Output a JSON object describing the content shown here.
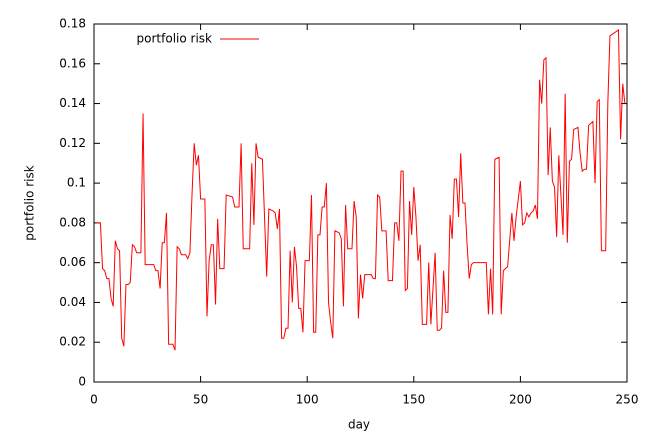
{
  "chart_data": {
    "type": "line",
    "xlabel": "day",
    "ylabel": "portfolio risk",
    "x": [
      1,
      2,
      3,
      4,
      5,
      6,
      7,
      8,
      9,
      10,
      11,
      12,
      13,
      14,
      15,
      16,
      17,
      18,
      19,
      20,
      22,
      23,
      24,
      28,
      29,
      30,
      31,
      32,
      33,
      34,
      35,
      37,
      38,
      39,
      40,
      41,
      43,
      44,
      45,
      46,
      47,
      48,
      49,
      50,
      52,
      53,
      54,
      55,
      56,
      57,
      58,
      59,
      61,
      62,
      65,
      66,
      68,
      69,
      70,
      73,
      74,
      75,
      76,
      77,
      79,
      81,
      82,
      84,
      85,
      86,
      87,
      88,
      89,
      90,
      91,
      92,
      93,
      94,
      95,
      96,
      97,
      98,
      99,
      101,
      102,
      103,
      104,
      105,
      106,
      107,
      108,
      109,
      110,
      111,
      112,
      113,
      115,
      116,
      117,
      118,
      119,
      121,
      122,
      123,
      124,
      125,
      126,
      127,
      130,
      131,
      132,
      133,
      134,
      135,
      137,
      138,
      140,
      141,
      142,
      143,
      144,
      145,
      146,
      147,
      148,
      149,
      150,
      151,
      152,
      153,
      154,
      156,
      157,
      158,
      160,
      161,
      162,
      163,
      164,
      165,
      166,
      167,
      168,
      169,
      170,
      171,
      172,
      173,
      174,
      175,
      176,
      177,
      178,
      184,
      185,
      186,
      187,
      188,
      190,
      191,
      192,
      193,
      194,
      196,
      197,
      198,
      200,
      201,
      202,
      203,
      204,
      205,
      206,
      207,
      208,
      209,
      210,
      211,
      212,
      213,
      214,
      215,
      216,
      217,
      218,
      220,
      221,
      222,
      223,
      224,
      225,
      227,
      228,
      229,
      230,
      231,
      232,
      234,
      235,
      236,
      237,
      238,
      240,
      241,
      242,
      246,
      247,
      248,
      249
    ],
    "series": [
      {
        "name": "portfolio risk",
        "color": "#ff0000",
        "values": [
          0.08,
          0.08,
          0.08,
          0.057,
          0.056,
          0.052,
          0.052,
          0.042,
          0.038,
          0.071,
          0.067,
          0.066,
          0.022,
          0.018,
          0.049,
          0.049,
          0.05,
          0.069,
          0.068,
          0.065,
          0.065,
          0.135,
          0.059,
          0.059,
          0.056,
          0.056,
          0.047,
          0.07,
          0.07,
          0.085,
          0.019,
          0.019,
          0.016,
          0.068,
          0.067,
          0.064,
          0.064,
          0.062,
          0.065,
          0.095,
          0.12,
          0.109,
          0.114,
          0.092,
          0.092,
          0.033,
          0.061,
          0.069,
          0.069,
          0.039,
          0.082,
          0.057,
          0.057,
          0.094,
          0.093,
          0.088,
          0.088,
          0.12,
          0.067,
          0.067,
          0.11,
          0.079,
          0.12,
          0.113,
          0.112,
          0.053,
          0.087,
          0.086,
          0.085,
          0.077,
          0.087,
          0.022,
          0.022,
          0.027,
          0.027,
          0.066,
          0.04,
          0.068,
          0.058,
          0.037,
          0.037,
          0.025,
          0.061,
          0.061,
          0.094,
          0.025,
          0.025,
          0.074,
          0.074,
          0.088,
          0.088,
          0.1,
          0.04,
          0.03,
          0.022,
          0.076,
          0.075,
          0.072,
          0.038,
          0.089,
          0.067,
          0.067,
          0.091,
          0.083,
          0.032,
          0.054,
          0.042,
          0.054,
          0.054,
          0.052,
          0.052,
          0.094,
          0.093,
          0.076,
          0.076,
          0.051,
          0.051,
          0.08,
          0.08,
          0.071,
          0.106,
          0.106,
          0.046,
          0.047,
          0.091,
          0.074,
          0.098,
          0.083,
          0.061,
          0.069,
          0.029,
          0.029,
          0.06,
          0.029,
          0.065,
          0.026,
          0.026,
          0.027,
          0.056,
          0.035,
          0.035,
          0.084,
          0.072,
          0.102,
          0.102,
          0.083,
          0.115,
          0.09,
          0.09,
          0.069,
          0.052,
          0.059,
          0.06,
          0.06,
          0.034,
          0.057,
          0.034,
          0.112,
          0.113,
          0.034,
          0.056,
          0.057,
          0.058,
          0.085,
          0.071,
          0.083,
          0.101,
          0.079,
          0.08,
          0.085,
          0.083,
          0.085,
          0.086,
          0.089,
          0.082,
          0.152,
          0.14,
          0.162,
          0.163,
          0.104,
          0.128,
          0.101,
          0.098,
          0.073,
          0.114,
          0.074,
          0.145,
          0.07,
          0.111,
          0.112,
          0.127,
          0.128,
          0.115,
          0.106,
          0.107,
          0.107,
          0.129,
          0.131,
          0.1,
          0.141,
          0.142,
          0.066,
          0.066,
          0.14,
          0.174,
          0.177,
          0.122,
          0.15,
          0.14
        ]
      }
    ],
    "xlim": [
      0,
      250
    ],
    "xticks": [
      0,
      50,
      100,
      150,
      200,
      250
    ],
    "ylim": [
      0,
      0.18
    ],
    "yticks": [
      0,
      0.02,
      0.04,
      0.06,
      0.08,
      0.1,
      0.12,
      0.14,
      0.16,
      0.18
    ],
    "legend": "top-left"
  }
}
